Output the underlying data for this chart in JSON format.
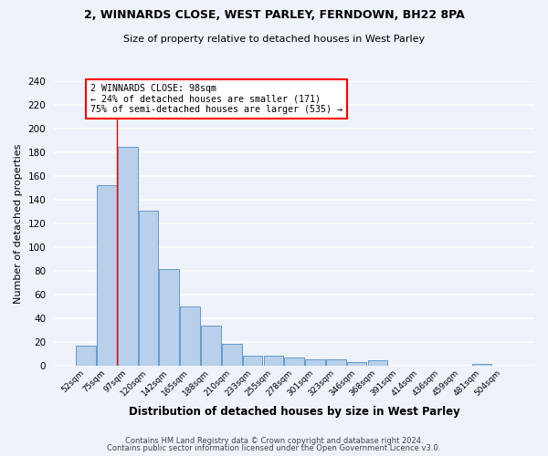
{
  "title1": "2, WINNARDS CLOSE, WEST PARLEY, FERNDOWN, BH22 8PA",
  "title2": "Size of property relative to detached houses in West Parley",
  "xlabel": "Distribution of detached houses by size in West Parley",
  "ylabel": "Number of detached properties",
  "footer1": "Contains HM Land Registry data © Crown copyright and database right 2024.",
  "footer2": "Contains public sector information licensed under the Open Government Licence v3.0.",
  "bar_labels": [
    "52sqm",
    "75sqm",
    "97sqm",
    "120sqm",
    "142sqm",
    "165sqm",
    "188sqm",
    "210sqm",
    "233sqm",
    "255sqm",
    "278sqm",
    "301sqm",
    "323sqm",
    "346sqm",
    "368sqm",
    "391sqm",
    "414sqm",
    "436sqm",
    "459sqm",
    "481sqm",
    "504sqm"
  ],
  "bar_values": [
    17,
    153,
    185,
    131,
    82,
    50,
    34,
    19,
    9,
    9,
    7,
    6,
    6,
    3,
    5,
    0,
    0,
    0,
    0,
    2,
    0
  ],
  "bar_color": "#b8d0ea",
  "bar_edge_color": "#6699cc",
  "annotation_text": "2 WINNARDS CLOSE: 98sqm\n← 24% of detached houses are smaller (171)\n75% of semi-detached houses are larger (535) →",
  "annotation_box_color": "white",
  "annotation_box_edge_color": "red",
  "vline_color": "red",
  "vline_x": 1.5,
  "ylim": [
    0,
    240
  ],
  "yticks": [
    0,
    20,
    40,
    60,
    80,
    100,
    120,
    140,
    160,
    180,
    200,
    220,
    240
  ],
  "bg_color": "#eef2fb",
  "grid_color": "white"
}
